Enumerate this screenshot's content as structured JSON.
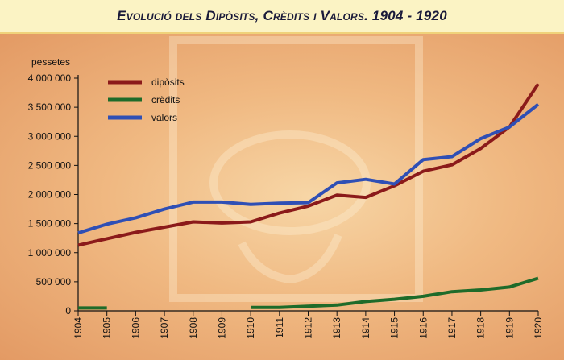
{
  "title": "Evolució dels Dipòsits, Crèdits i Valors. 1904 - 1920",
  "chart_data": {
    "type": "line",
    "ylabel": "pessetes",
    "ylim": [
      0,
      4000000
    ],
    "y_ticks": [
      0,
      500000,
      1000000,
      1500000,
      2000000,
      2500000,
      3000000,
      3500000,
      4000000
    ],
    "y_tick_labels": [
      "0",
      "500 000",
      "1 000 000",
      "1 500 000",
      "2 000 000",
      "2 500 000",
      "3 000 000",
      "3 500 000",
      "4 000 000"
    ],
    "categories": [
      "1904",
      "1905",
      "1906",
      "1907",
      "1908",
      "1909",
      "1910",
      "1911",
      "1912",
      "1913",
      "1914",
      "1915",
      "1916",
      "1917",
      "1918",
      "1919",
      "1920"
    ],
    "legend_position": "top-left",
    "grid": false,
    "series": [
      {
        "name": "dipòsits",
        "color": "#8b1a1a",
        "values": [
          1130000,
          1240000,
          1350000,
          1440000,
          1530000,
          1510000,
          1530000,
          1680000,
          1800000,
          1990000,
          1950000,
          2150000,
          2400000,
          2510000,
          2790000,
          3160000,
          3900000
        ]
      },
      {
        "name": "crèdits",
        "color": "#1e6b2a",
        "segments": [
          [
            0,
            1
          ],
          [
            6,
            16
          ]
        ],
        "values": [
          50000,
          50000,
          null,
          null,
          null,
          null,
          60000,
          60000,
          80000,
          100000,
          160000,
          200000,
          250000,
          330000,
          360000,
          410000,
          560000
        ]
      },
      {
        "name": "valors",
        "color": "#2f4fb5",
        "values": [
          1340000,
          1490000,
          1600000,
          1750000,
          1870000,
          1870000,
          1830000,
          1850000,
          1860000,
          2200000,
          2260000,
          2180000,
          2600000,
          2650000,
          2960000,
          3160000,
          3550000
        ]
      }
    ]
  }
}
